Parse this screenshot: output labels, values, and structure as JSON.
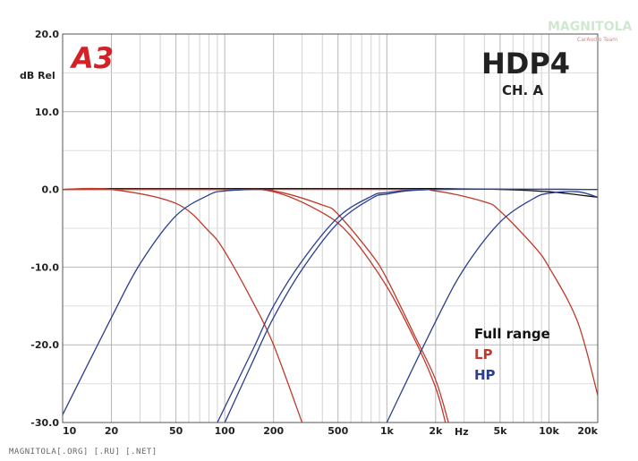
{
  "chart_data": {
    "type": "line",
    "title": "HDP4",
    "subtitle": "CH. A",
    "ylabel": "dB Rel",
    "xlabel": "Hz",
    "xscale": "log",
    "xlim": [
      10,
      20000
    ],
    "ylim": [
      -30,
      20
    ],
    "grid": true,
    "x_ticks": [
      10,
      20,
      50,
      100,
      200,
      500,
      1000,
      2000,
      5000,
      10000,
      20000
    ],
    "x_tick_labels": [
      "10",
      "20",
      "50",
      "100",
      "200",
      "500",
      "1k",
      "2k",
      "5k",
      "10k",
      "20k"
    ],
    "y_ticks": [
      20,
      10,
      0,
      -10,
      -20,
      -30
    ],
    "y_tick_labels": [
      "20.0",
      "10.0",
      "0.0",
      "-10.0",
      "-20.0",
      "-30.0"
    ],
    "legend": {
      "placement": "bottom-right",
      "entries": [
        {
          "label": "Full range",
          "color": "#111111"
        },
        {
          "label": "LP",
          "color": "#c0392b"
        },
        {
          "label": "HP",
          "color": "#2c3e8f"
        }
      ]
    },
    "series": [
      {
        "type": "full",
        "color": "#111111",
        "x": [
          10,
          20,
          50,
          100,
          200,
          500,
          1000,
          2000,
          5000,
          10000,
          20000
        ],
        "y": [
          0,
          0.1,
          0.1,
          0.1,
          0.1,
          0.1,
          0.1,
          0.1,
          0,
          -0.3,
          -1.0
        ]
      },
      {
        "type": "lp",
        "color": "#c0392b",
        "x": [
          10,
          20,
          50,
          80,
          100,
          150,
          200,
          300
        ],
        "y": [
          0,
          0,
          -1.8,
          -5.4,
          -8.0,
          -14.6,
          -20.0,
          -30.0
        ]
      },
      {
        "type": "lp",
        "color": "#c0392b",
        "x": [
          10,
          100,
          200,
          400,
          500,
          800,
          1000,
          1500,
          2000,
          2400
        ],
        "y": [
          0,
          0,
          -0.2,
          -2.0,
          -3.2,
          -8.3,
          -11.5,
          -19.0,
          -24.5,
          -30.0
        ]
      },
      {
        "type": "lp",
        "color": "#c0392b",
        "x": [
          10,
          100,
          200,
          400,
          600,
          1000,
          1500,
          2000,
          2300
        ],
        "y": [
          0,
          0,
          -0.3,
          -3.0,
          -6.0,
          -12.5,
          -19.5,
          -25.5,
          -30.0
        ]
      },
      {
        "type": "lp",
        "color": "#c0392b",
        "x": [
          10,
          1000,
          2000,
          4000,
          5000,
          8000,
          10000,
          15000,
          20000
        ],
        "y": [
          0,
          0,
          -0.2,
          -1.6,
          -2.8,
          -7.2,
          -10.0,
          -17.0,
          -26.5
        ]
      },
      {
        "type": "hp",
        "color": "#2c3e8f",
        "x": [
          10,
          20,
          30,
          50,
          80,
          100,
          150,
          200
        ],
        "y": [
          -29.0,
          -16.5,
          -9.6,
          -3.4,
          -0.7,
          -0.2,
          0,
          0
        ]
      },
      {
        "type": "hp",
        "color": "#2c3e8f",
        "x": [
          90,
          150,
          200,
          300,
          500,
          800,
          1000,
          2000,
          20000
        ],
        "y": [
          -30.0,
          -20.5,
          -15.0,
          -9.2,
          -3.6,
          -0.9,
          -0.4,
          0,
          0
        ]
      },
      {
        "type": "hp",
        "color": "#2c3e8f",
        "x": [
          100,
          150,
          200,
          300,
          500,
          800,
          1000,
          2000,
          20000
        ],
        "y": [
          -30.0,
          -22.0,
          -16.5,
          -10.3,
          -4.3,
          -1.2,
          -0.6,
          0,
          0
        ]
      },
      {
        "type": "hp",
        "color": "#2c3e8f",
        "x": [
          1000,
          2000,
          3000,
          5000,
          8000,
          10000,
          15000,
          20000
        ],
        "y": [
          -30.0,
          -17.0,
          -10.2,
          -4.2,
          -1.2,
          -0.5,
          -0.3,
          -1.0
        ]
      }
    ]
  },
  "logo": {
    "brand_text": "A3",
    "watermark": "MAGNITOLA",
    "watermark_sub": "CarAudio Team"
  },
  "footer_text": "MAGNITOLA[.ORG] [.RU] [.NET]"
}
